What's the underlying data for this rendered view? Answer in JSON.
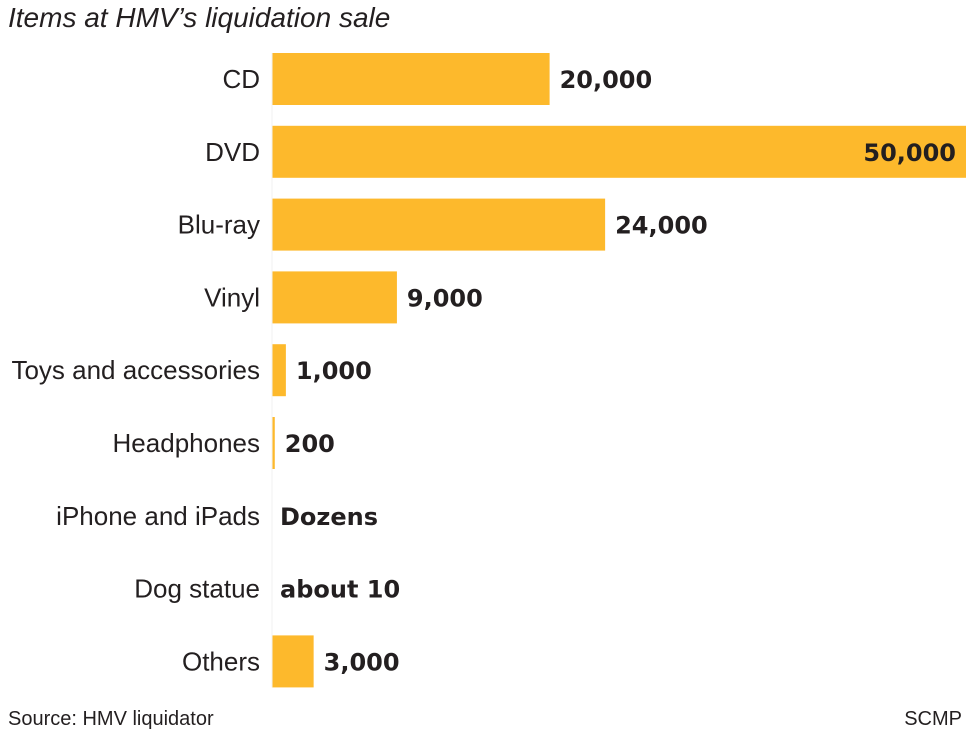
{
  "title": "Items at HMV’s liquidation sale",
  "source": "Source: HMV liquidator",
  "brand": "SCMP",
  "colors": {
    "bar": "#fdb92c",
    "text": "#231f20",
    "axis": "#231f20"
  },
  "chart_data": {
    "type": "bar",
    "orientation": "horizontal",
    "title": "Items at HMV’s liquidation sale",
    "categories": [
      "CD",
      "DVD",
      "Blu-ray",
      "Vinyl",
      "Toys and accessories",
      "Headphones",
      "iPhone and iPads",
      "Dog statue",
      "Others"
    ],
    "values": [
      20000,
      50000,
      24000,
      9000,
      1000,
      200,
      null,
      10,
      3000
    ],
    "value_labels": [
      "20,000",
      "50,000",
      "24,000",
      "9,000",
      "1,000",
      "200",
      "Dozens",
      "about 10",
      "3,000"
    ],
    "xlim": [
      0,
      50000
    ],
    "grid": false
  }
}
